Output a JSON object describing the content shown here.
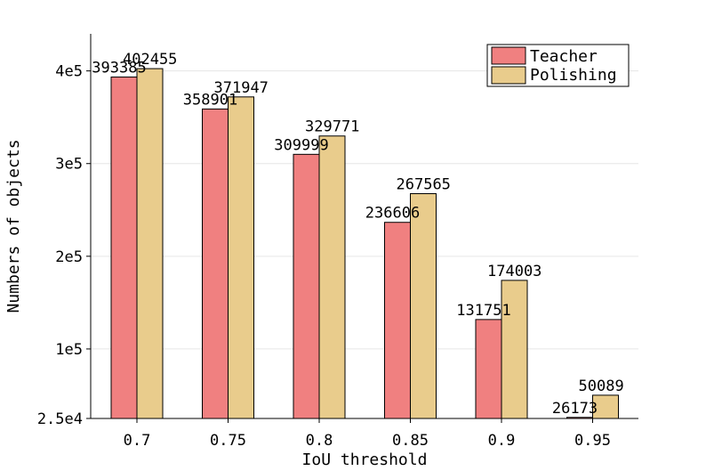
{
  "chart_data": {
    "type": "bar",
    "xlabel": "IoU threshold",
    "ylabel": "Numbers of objects",
    "categories": [
      "0.7",
      "0.75",
      "0.8",
      "0.85",
      "0.9",
      "0.95"
    ],
    "series": [
      {
        "name": "Teacher",
        "color": "#f08080",
        "values": [
          393385,
          358901,
          309999,
          236606,
          131751,
          26173
        ]
      },
      {
        "name": "Polishing",
        "color": "#e9cc8c",
        "values": [
          402455,
          371947,
          329771,
          267565,
          174003,
          50089
        ]
      }
    ],
    "y_ticks": [
      {
        "value": 25000,
        "label": "2.5e4"
      },
      {
        "value": 100000,
        "label": "1e5"
      },
      {
        "value": 200000,
        "label": "2e5"
      },
      {
        "value": 300000,
        "label": "3e5"
      },
      {
        "value": 400000,
        "label": "4e5"
      }
    ],
    "ylim": [
      25000,
      440000
    ],
    "grid": "horizontal",
    "legend_position": "top-right"
  }
}
